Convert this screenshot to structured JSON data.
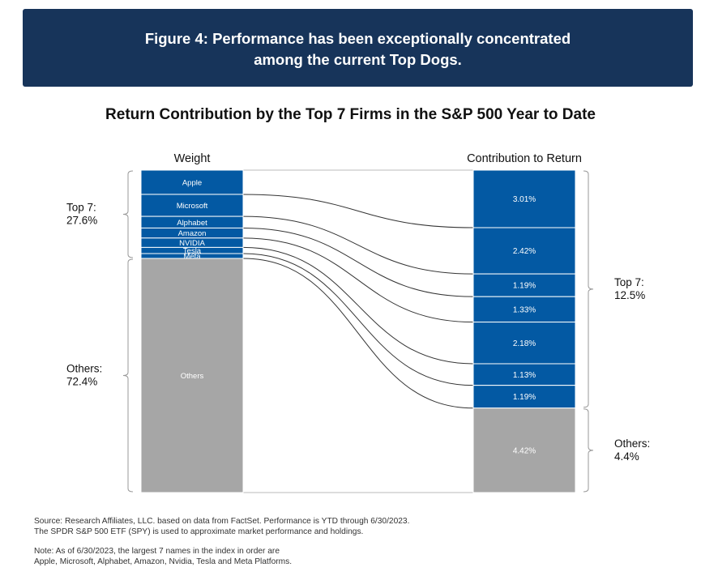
{
  "header": {
    "figure_title": "Figure 4: Performance has been exceptionally concentrated\namong the current Top Dogs."
  },
  "chart_data": {
    "type": "bar",
    "title": "Return Contribution by the Top 7 Firms in the S&P 500 Year to Date",
    "columns": [
      "Weight",
      "Contribution to Return"
    ],
    "categories": [
      "Apple",
      "Microsoft",
      "Alphabet",
      "Amazon",
      "NVIDIA",
      "Tesla",
      "Meta",
      "Others"
    ],
    "weight_values": [
      7.5,
      6.8,
      3.6,
      3.1,
      2.9,
      1.9,
      1.5,
      72.4
    ],
    "contribution_values": [
      3.01,
      2.42,
      1.19,
      1.33,
      2.18,
      1.13,
      1.19,
      4.42
    ],
    "contribution_labels": [
      "3.01%",
      "2.42%",
      "1.19%",
      "1.33%",
      "2.18%",
      "1.13%",
      "1.19%",
      "4.42%"
    ],
    "groups": {
      "weight": [
        {
          "label": "Top 7:\n27.6%",
          "value": 27.6
        },
        {
          "label": "Others:\n72.4%",
          "value": 72.4
        }
      ],
      "contribution": [
        {
          "label": "Top 7:\n12.5%",
          "value": 12.5
        },
        {
          "label": "Others:\n4.4%",
          "value": 4.4
        }
      ]
    },
    "colors": {
      "top7": "#0359a3",
      "others": "#a6a6a6",
      "separator": "#ffffff",
      "flow_line": "#333333",
      "bracket": "#9a9a9a"
    }
  },
  "footnotes": {
    "source": "Source: Research Affiliates, LLC. based on data from FactSet. Performance is YTD through 6/30/2023.\nThe SPDR S&P 500 ETF (SPY) is used to approximate market performance and holdings.",
    "note": "Note: As of 6/30/2023, the largest 7 names in the index in order are\nApple, Microsoft, Alphabet, Amazon, Nvidia, Tesla and Meta Platforms."
  }
}
